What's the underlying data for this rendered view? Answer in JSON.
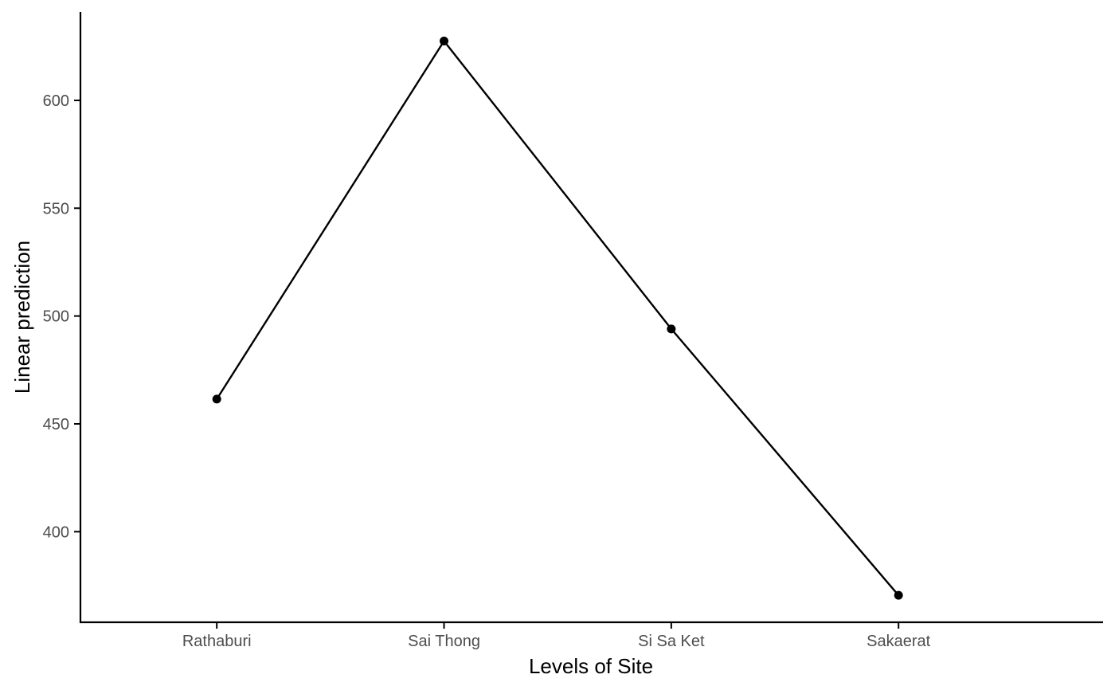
{
  "chart_data": {
    "type": "line",
    "title": "",
    "xlabel": "Levels of Site",
    "ylabel": "Linear prediction",
    "categories": [
      "Rathaburi",
      "Sai Thong",
      "Si Sa Ket",
      "Sakaerat"
    ],
    "series": [
      {
        "values": [
          461.5,
          627.5,
          494,
          370.5
        ],
        "color": "#000000"
      }
    ],
    "yticks": [
      400,
      450,
      500,
      550,
      600
    ],
    "ylim": [
      358,
      641
    ],
    "grid": false,
    "legend": "none"
  }
}
